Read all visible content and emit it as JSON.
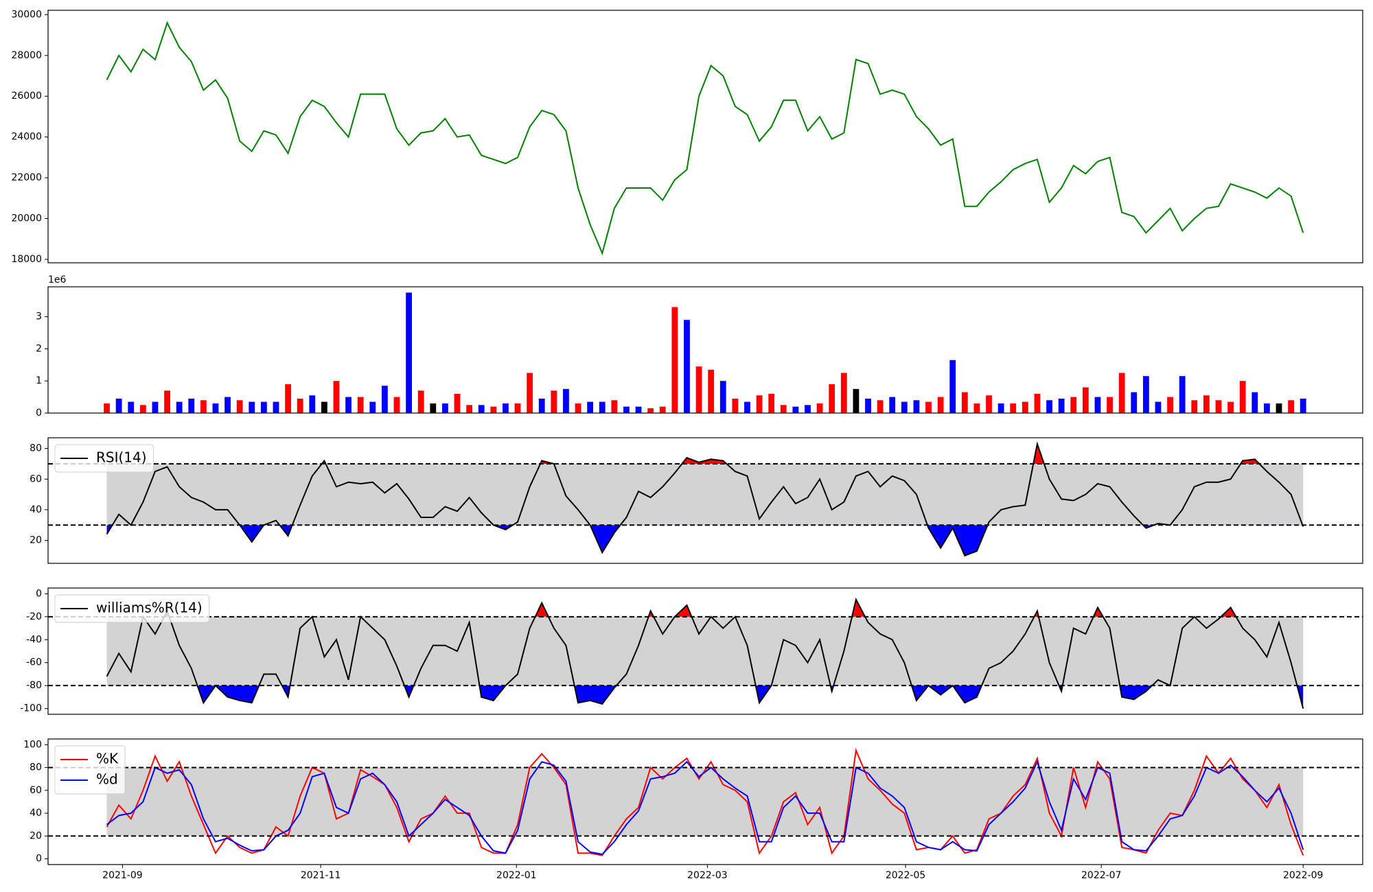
{
  "chart_data": [
    {
      "type": "line",
      "color": "#008000",
      "values": [
        26800,
        28000,
        27200,
        28300,
        27800,
        29600,
        28400,
        27700,
        26300,
        26800,
        25900,
        23800,
        23300,
        24300,
        24100,
        23200,
        25000,
        25800,
        25500,
        24700,
        24000,
        26100,
        26100,
        26100,
        24400,
        23600,
        24200,
        24300,
        24900,
        24000,
        24100,
        23100,
        22900,
        22700,
        23000,
        24500,
        25300,
        25100,
        24300,
        21500,
        19700,
        18300,
        20500,
        21500,
        21500,
        21500,
        20900,
        21900,
        22400,
        26000,
        27500,
        27000,
        25500,
        25100,
        23800,
        24500,
        25800,
        25800,
        24300,
        25000,
        23900,
        24200,
        27800,
        27600,
        26100,
        26300,
        26100,
        25000,
        24400,
        23600,
        23900,
        20600,
        20600,
        21300,
        21800,
        22400,
        22700,
        22900,
        20800,
        21500,
        22600,
        22200,
        22800,
        23000,
        20300,
        20100,
        19300,
        19900,
        20500,
        19400,
        20000,
        20500,
        20600,
        21700,
        21500,
        21300,
        21000,
        21500,
        21100,
        19300
      ],
      "xlim": [
        -4.86,
        103.93
      ],
      "ylim": [
        17830,
        30215
      ],
      "yticks": [
        18000,
        20000,
        22000,
        24000,
        26000,
        28000,
        30000
      ]
    },
    {
      "type": "bar",
      "offset_label": "1e6",
      "values": [
        0.3,
        0.45,
        0.35,
        0.25,
        0.35,
        0.7,
        0.35,
        0.45,
        0.4,
        0.3,
        0.5,
        0.4,
        0.35,
        0.35,
        0.35,
        0.9,
        0.45,
        0.55,
        0.35,
        1.0,
        0.5,
        0.5,
        0.35,
        0.85,
        0.5,
        3.75,
        0.7,
        0.3,
        0.3,
        0.6,
        0.25,
        0.25,
        0.2,
        0.3,
        0.3,
        1.25,
        0.45,
        0.7,
        0.75,
        0.3,
        0.35,
        0.35,
        0.4,
        0.2,
        0.2,
        0.15,
        0.2,
        3.3,
        2.9,
        1.45,
        1.35,
        1.0,
        0.45,
        0.35,
        0.55,
        0.6,
        0.25,
        0.2,
        0.25,
        0.3,
        0.9,
        1.25,
        0.75,
        0.45,
        0.4,
        0.5,
        0.35,
        0.4,
        0.35,
        0.5,
        1.65,
        0.65,
        0.3,
        0.55,
        0.3,
        0.3,
        0.35,
        0.6,
        0.4,
        0.45,
        0.5,
        0.8,
        0.5,
        0.5,
        1.25,
        0.65,
        1.15,
        0.35,
        0.5,
        1.15,
        0.4,
        0.55,
        0.4,
        0.35,
        1.0,
        0.65,
        0.3,
        0.3,
        0.4,
        0.45
      ],
      "colors": [
        "red",
        "blue",
        "blue",
        "red",
        "blue",
        "red",
        "blue",
        "blue",
        "red",
        "blue",
        "blue",
        "red",
        "blue",
        "blue",
        "blue",
        "red",
        "red",
        "blue",
        "black",
        "red",
        "blue",
        "red",
        "blue",
        "blue",
        "red",
        "blue",
        "red",
        "black",
        "blue",
        "red",
        "red",
        "blue",
        "red",
        "blue",
        "red",
        "red",
        "blue",
        "red",
        "blue",
        "red",
        "blue",
        "blue",
        "red",
        "blue",
        "blue",
        "red",
        "red",
        "red",
        "blue",
        "red",
        "red",
        "blue",
        "red",
        "blue",
        "red",
        "red",
        "red",
        "blue",
        "blue",
        "red",
        "red",
        "red",
        "black",
        "blue",
        "red",
        "blue",
        "blue",
        "blue",
        "red",
        "red",
        "blue",
        "red",
        "red",
        "red",
        "blue",
        "red",
        "red",
        "red",
        "blue",
        "blue",
        "red",
        "red",
        "blue",
        "red",
        "red",
        "blue",
        "blue",
        "blue",
        "red",
        "blue",
        "red",
        "red",
        "red",
        "red",
        "red",
        "blue",
        "blue",
        "black",
        "red",
        "blue"
      ],
      "xlim": [
        -4.86,
        103.93
      ],
      "ylim": [
        0,
        3.93
      ],
      "yticks": [
        0,
        1,
        2,
        3
      ]
    },
    {
      "type": "line",
      "legend": "upper left",
      "series": [
        {
          "name": "RSI(14)",
          "color": "#000000",
          "values": [
            24,
            37,
            30,
            45,
            65,
            68,
            55,
            48,
            45,
            40,
            40,
            30,
            19,
            30,
            33,
            23,
            43,
            62,
            72,
            55,
            58,
            57,
            58,
            51,
            57,
            47,
            35,
            35,
            42,
            39,
            48,
            38,
            30,
            27,
            32,
            55,
            72,
            70,
            49,
            40,
            30,
            12,
            25,
            35,
            52,
            48,
            55,
            64,
            74,
            71,
            73,
            72,
            65,
            62,
            34,
            45,
            55,
            44,
            48,
            60,
            40,
            45,
            62,
            65,
            55,
            62,
            59,
            50,
            28,
            15,
            28,
            10,
            13,
            32,
            40,
            42,
            43,
            83,
            60,
            47,
            46,
            50,
            57,
            55,
            45,
            36,
            28,
            31,
            30,
            40,
            55,
            58,
            58,
            60,
            72,
            73,
            65,
            58,
            50,
            29
          ]
        }
      ],
      "thresholds": [
        30,
        70
      ],
      "band_color": "#d3d3d3",
      "above_color": "#ff0000",
      "below_color": "#0000ff",
      "xlim": [
        -4.86,
        103.93
      ],
      "ylim": [
        5,
        87
      ],
      "yticks": [
        20,
        40,
        60,
        80
      ]
    },
    {
      "type": "line",
      "legend": "upper left",
      "series": [
        {
          "name": "williams%R(14)",
          "color": "#000000",
          "values": [
            -72,
            -52,
            -68,
            -20,
            -35,
            -15,
            -45,
            -65,
            -95,
            -80,
            -90,
            -93,
            -95,
            -70,
            -70,
            -90,
            -30,
            -20,
            -55,
            -40,
            -75,
            -20,
            -30,
            -40,
            -63,
            -90,
            -65,
            -45,
            -45,
            -50,
            -25,
            -90,
            -93,
            -80,
            -70,
            -30,
            -8,
            -30,
            -45,
            -95,
            -93,
            -96,
            -82,
            -70,
            -45,
            -15,
            -35,
            -20,
            -10,
            -35,
            -20,
            -30,
            -20,
            -45,
            -95,
            -80,
            -40,
            -45,
            -60,
            -40,
            -85,
            -50,
            -5,
            -25,
            -35,
            -40,
            -60,
            -93,
            -80,
            -88,
            -80,
            -95,
            -90,
            -65,
            -60,
            -50,
            -35,
            -15,
            -60,
            -85,
            -30,
            -35,
            -12,
            -30,
            -90,
            -92,
            -85,
            -75,
            -80,
            -30,
            -20,
            -30,
            -22,
            -12,
            -30,
            -40,
            -55,
            -25,
            -60,
            -100
          ]
        }
      ],
      "thresholds": [
        -80,
        -20
      ],
      "band_color": "#d3d3d3",
      "above_color": "#ff0000",
      "below_color": "#0000ff",
      "xlim": [
        -4.86,
        103.93
      ],
      "ylim": [
        -105,
        5
      ],
      "yticks": [
        -100,
        -80,
        -60,
        -40,
        -20,
        0
      ]
    },
    {
      "type": "line",
      "legend": "upper left",
      "series": [
        {
          "name": "%K",
          "color": "#ff0000",
          "values": [
            28,
            47,
            35,
            60,
            90,
            68,
            85,
            55,
            30,
            5,
            20,
            10,
            5,
            8,
            28,
            20,
            55,
            80,
            75,
            35,
            40,
            78,
            72,
            65,
            45,
            15,
            35,
            40,
            55,
            40,
            40,
            10,
            5,
            5,
            30,
            80,
            92,
            80,
            65,
            5,
            5,
            3,
            20,
            35,
            45,
            80,
            70,
            80,
            88,
            70,
            85,
            65,
            60,
            50,
            5,
            20,
            50,
            58,
            30,
            45,
            5,
            20,
            95,
            70,
            60,
            48,
            40,
            8,
            10,
            8,
            20,
            5,
            8,
            35,
            40,
            55,
            65,
            88,
            40,
            20,
            80,
            45,
            85,
            70,
            10,
            8,
            5,
            25,
            40,
            38,
            60,
            90,
            75,
            88,
            70,
            60,
            45,
            65,
            30,
            3
          ]
        },
        {
          "name": "%d",
          "color": "#0000ff",
          "values": [
            30,
            38,
            40,
            50,
            80,
            75,
            78,
            65,
            35,
            15,
            18,
            12,
            7,
            8,
            20,
            25,
            40,
            72,
            75,
            45,
            40,
            70,
            75,
            65,
            50,
            20,
            30,
            40,
            52,
            45,
            38,
            20,
            7,
            5,
            25,
            70,
            85,
            82,
            68,
            15,
            6,
            4,
            15,
            30,
            42,
            70,
            72,
            75,
            85,
            72,
            80,
            70,
            62,
            55,
            15,
            15,
            45,
            55,
            40,
            40,
            15,
            15,
            80,
            75,
            62,
            55,
            45,
            15,
            10,
            8,
            15,
            8,
            7,
            30,
            40,
            50,
            62,
            85,
            50,
            25,
            70,
            52,
            80,
            75,
            15,
            8,
            7,
            20,
            35,
            38,
            55,
            80,
            75,
            82,
            72,
            60,
            50,
            62,
            40,
            8
          ]
        }
      ],
      "thresholds": [
        20,
        80
      ],
      "band_color": "#d3d3d3",
      "xlim": [
        -4.86,
        103.93
      ],
      "ylim": [
        -5,
        105
      ],
      "yticks": [
        0,
        20,
        40,
        60,
        80,
        100
      ],
      "xticks": [
        {
          "value": 1.3,
          "label": "2021-09"
        },
        {
          "value": 17.7,
          "label": "2021-11"
        },
        {
          "value": 33.9,
          "label": "2022-01"
        },
        {
          "value": 49.7,
          "label": "2022-03"
        },
        {
          "value": 66.1,
          "label": "2022-05"
        },
        {
          "value": 82.3,
          "label": "2022-07"
        },
        {
          "value": 99.0,
          "label": "2022-09"
        }
      ]
    }
  ]
}
